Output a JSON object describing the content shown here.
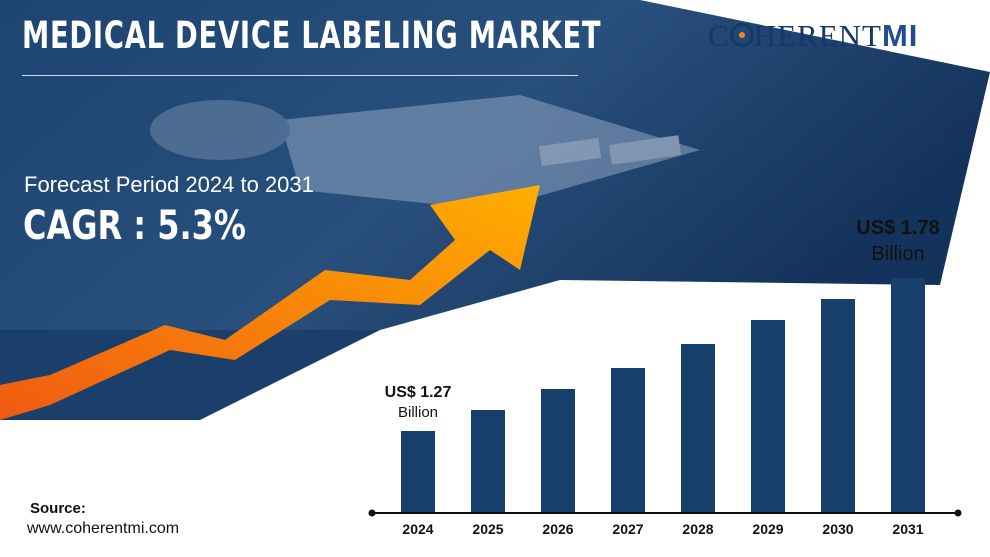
{
  "header": {
    "title": "MEDICAL DEVICE LABELING MARKET",
    "forecast": "Forecast Period 2024 to 2031",
    "cagr": "CAGR : 5.3%"
  },
  "logo": {
    "letter1": "C",
    "middle": "HERENT",
    "suffix": "MI"
  },
  "source": {
    "label": "Source:",
    "url": "www.coherentmi.com"
  },
  "colors": {
    "bar": "#163f6b",
    "arrow_start": "#f26a13",
    "arrow_end": "#ffb000",
    "header_bg": "#1b3f6b"
  },
  "chart_data": {
    "type": "bar",
    "categories": [
      "2024",
      "2025",
      "2026",
      "2027",
      "2028",
      "2029",
      "2030",
      "2031"
    ],
    "values": [
      1.27,
      1.34,
      1.41,
      1.48,
      1.56,
      1.64,
      1.71,
      1.78
    ],
    "ylim": [
      1.0,
      1.8
    ],
    "grid": false,
    "annotations": [
      {
        "index": 0,
        "value": "US$ 1.27",
        "unit": "Billion"
      },
      {
        "index": 7,
        "value": "US$ 1.78",
        "unit": "Billion"
      }
    ]
  }
}
